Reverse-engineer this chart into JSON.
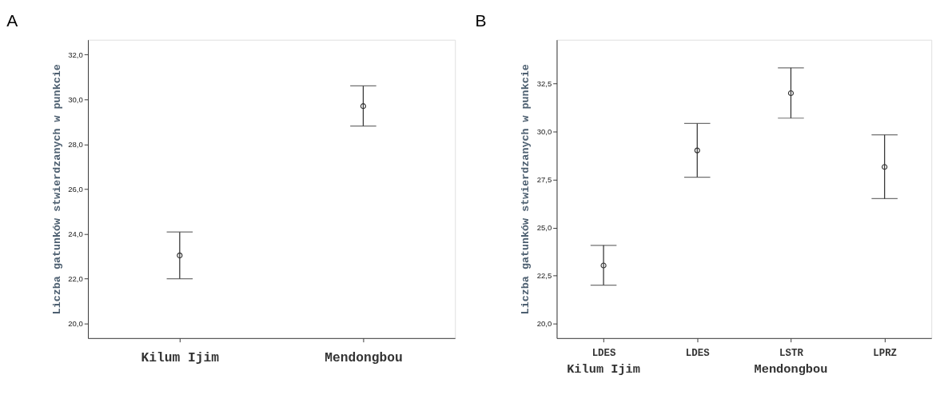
{
  "chart_data": [
    {
      "type": "scatter",
      "title": "A",
      "ylabel": "Liczba gatunków stwierdzanych w punkcie",
      "categories": [
        "Kilum Ijim",
        "Mendongbou"
      ],
      "values": [
        23.04,
        29.7
      ],
      "errors": [
        [
          22.0,
          24.08
        ],
        [
          28.81,
          30.6
        ]
      ],
      "color": "#333333",
      "marker": "circle",
      "ylim": [
        19.35,
        32.66
      ],
      "yticks": [
        {
          "value": 20,
          "label": "20,0"
        },
        {
          "value": 22,
          "label": "22,0"
        },
        {
          "value": 24,
          "label": "24,0"
        },
        {
          "value": 26,
          "label": "26,0"
        },
        {
          "value": 28,
          "label": "28,0"
        },
        {
          "value": 30,
          "label": "30,0"
        },
        {
          "value": 32,
          "label": "32,0"
        }
      ],
      "grid": false
    },
    {
      "type": "scatter",
      "title": "B",
      "ylabel": "Liczba gatunków stwierdzanych w punkcie",
      "categories": [
        "LDES",
        "LDES",
        "LSTR",
        "LPRZ"
      ],
      "values": [
        23.03,
        29.02,
        32.0,
        28.16
      ],
      "errors": [
        [
          22.01,
          24.08
        ],
        [
          27.63,
          30.42
        ],
        [
          30.7,
          33.32
        ],
        [
          26.51,
          29.83
        ]
      ],
      "color": "#333333",
      "marker": "circle",
      "ylim": [
        19.25,
        34.78
      ],
      "yticks": [
        {
          "value": 20,
          "label": "20,0"
        },
        {
          "value": 22.5,
          "label": "22,5"
        },
        {
          "value": 25,
          "label": "25,0"
        },
        {
          "value": 27.5,
          "label": "27,5"
        },
        {
          "value": 30,
          "label": "30,0"
        },
        {
          "value": 32.5,
          "label": "32,5"
        }
      ],
      "grid": false,
      "annotations": [
        "Kilum Ijim",
        "Mendongbou"
      ]
    }
  ]
}
